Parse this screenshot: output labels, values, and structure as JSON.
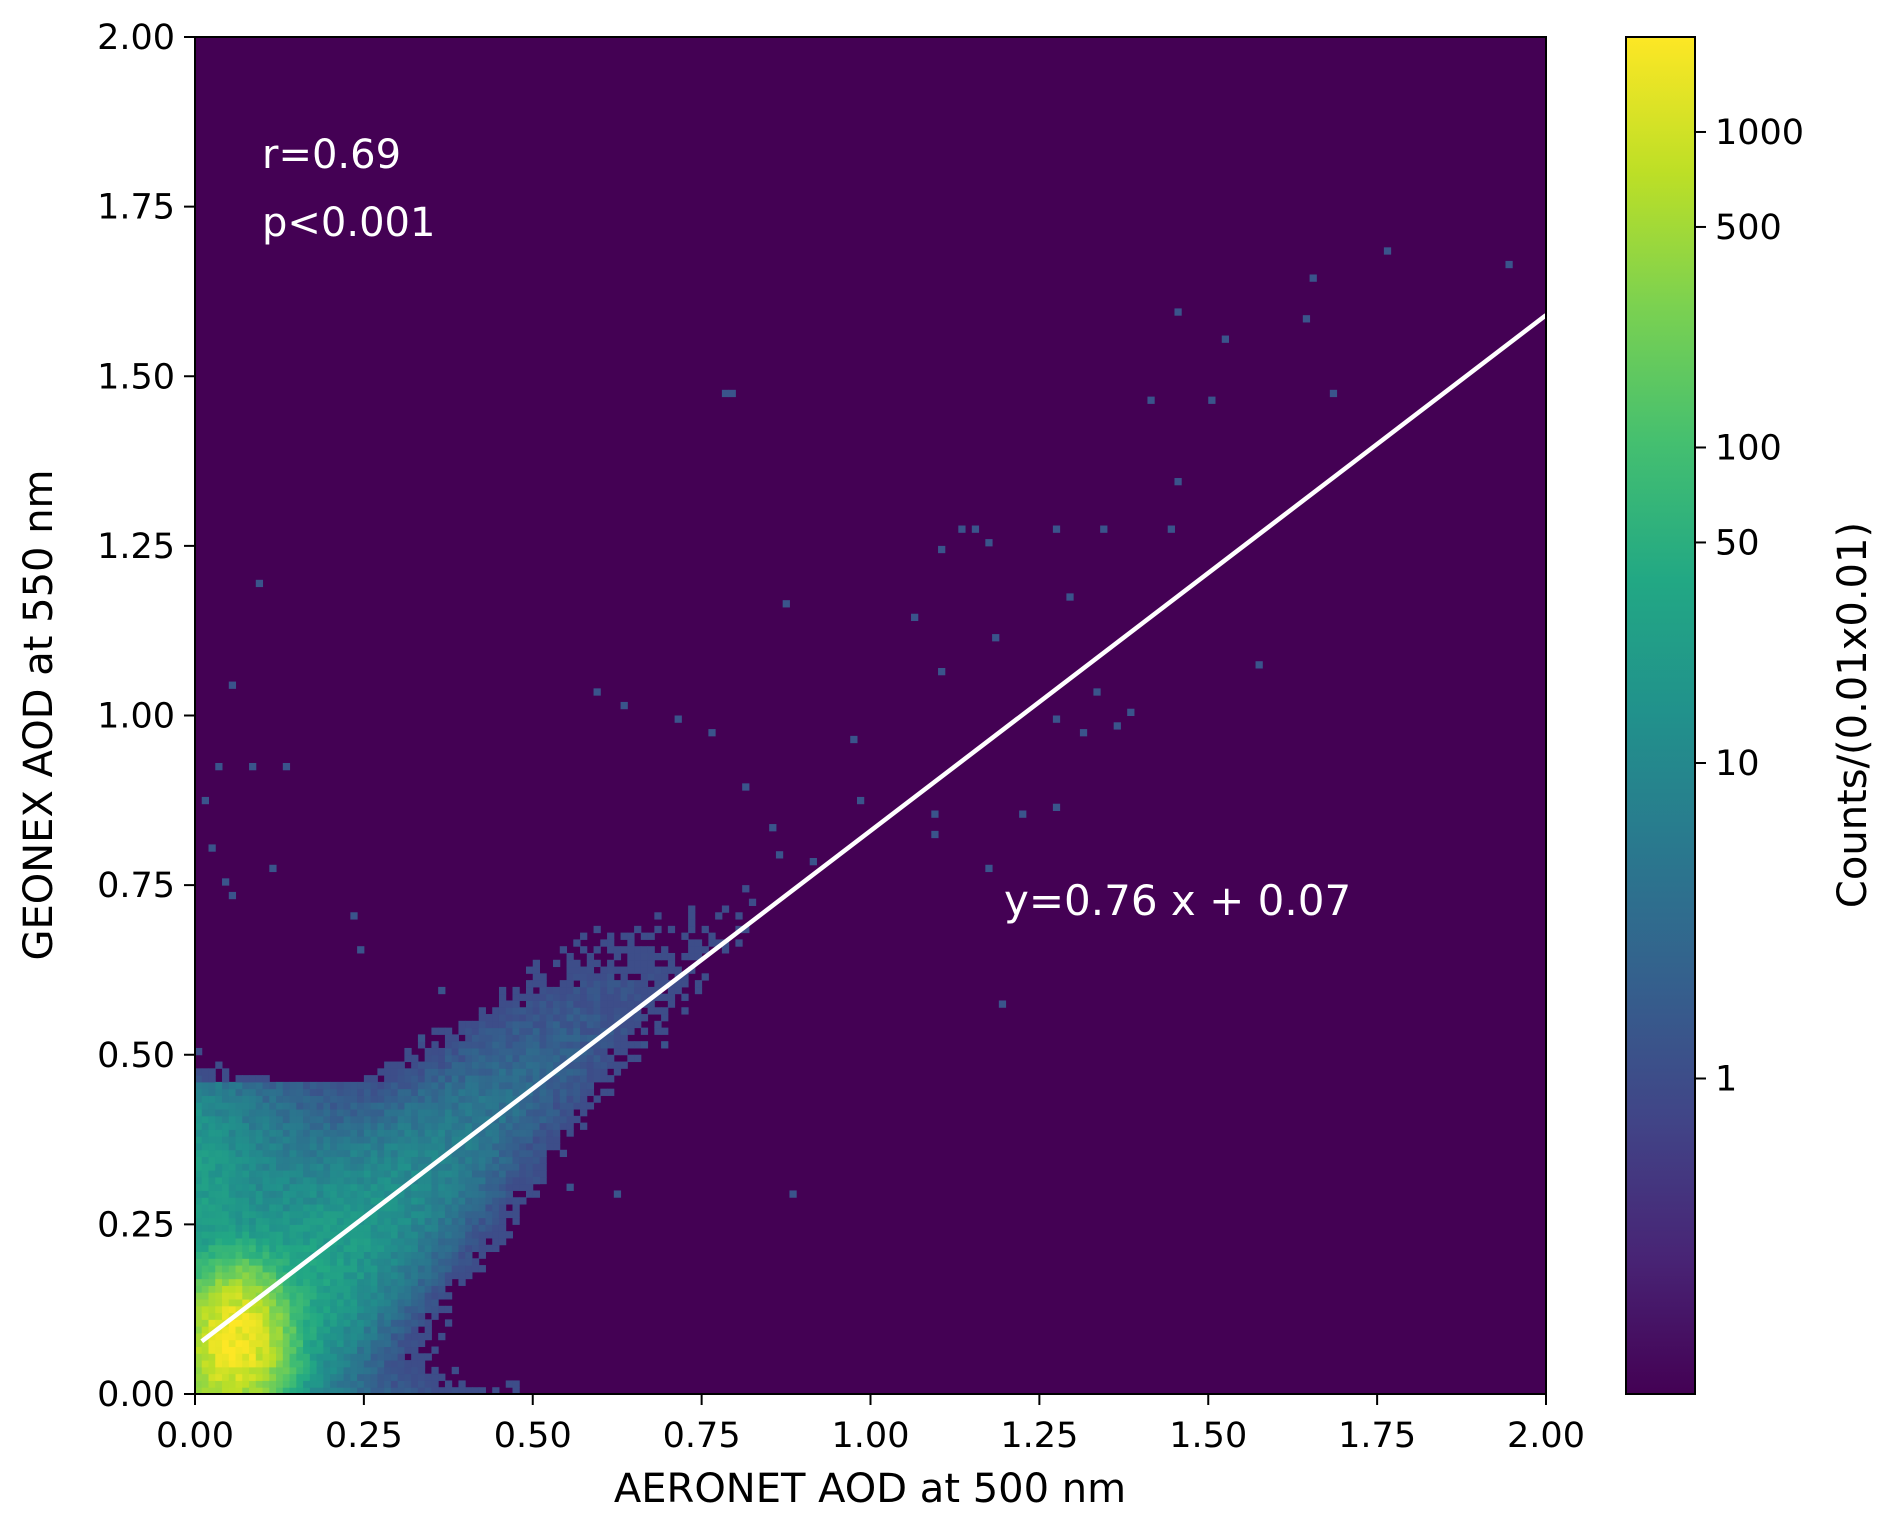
{
  "chart_data": {
    "type": "heatmap",
    "title": "",
    "xlabel": "AERONET AOD at 500 nm",
    "ylabel": "GEONEX AOD at 550 nm",
    "xlim": [
      0,
      2
    ],
    "ylim": [
      0,
      2
    ],
    "xticks": [
      "0.00",
      "0.25",
      "0.50",
      "0.75",
      "1.00",
      "1.25",
      "1.50",
      "1.75",
      "2.00"
    ],
    "yticks": [
      "0.00",
      "0.25",
      "0.50",
      "0.75",
      "1.00",
      "1.25",
      "1.50",
      "1.75",
      "2.00"
    ],
    "bin_size": 0.01,
    "colormap": "viridis",
    "background_color": "#440154",
    "colorbar": {
      "label": "Counts/(0.01x0.01)",
      "scale": "log",
      "range": [
        0.1,
        2000
      ],
      "ticks": [
        {
          "value": 1000,
          "label": "1000"
        },
        {
          "value": 500,
          "label": "500"
        },
        {
          "value": 100,
          "label": "100"
        },
        {
          "value": 50,
          "label": "50"
        },
        {
          "value": 10,
          "label": "10"
        },
        {
          "value": 1,
          "label": "1"
        }
      ]
    },
    "fit_line": {
      "slope": 0.76,
      "intercept": 0.07,
      "x_range": [
        0.01,
        2.0
      ],
      "color": "#ffffff",
      "label": "y=0.76 x + 0.07"
    },
    "annotations": {
      "r": "r=0.69",
      "p": "p<0.001"
    },
    "density_model": {
      "peak": [
        0.06,
        0.08
      ],
      "peak_count": 1800
    },
    "outliers": [
      [
        0.09,
        1.19
      ],
      [
        0.05,
        1.04
      ],
      [
        0.03,
        0.92
      ],
      [
        0.08,
        0.92
      ],
      [
        0.13,
        0.92
      ],
      [
        0.01,
        0.87
      ],
      [
        0.02,
        0.8
      ],
      [
        0.11,
        0.77
      ],
      [
        0.04,
        0.75
      ],
      [
        0.24,
        0.65
      ],
      [
        0.05,
        0.73
      ],
      [
        0.23,
        0.7
      ],
      [
        0.78,
        1.47
      ],
      [
        0.79,
        1.47
      ],
      [
        0.87,
        1.16
      ],
      [
        1.06,
        1.14
      ],
      [
        1.1,
        1.06
      ],
      [
        1.13,
        1.27
      ],
      [
        1.1,
        1.24
      ],
      [
        1.15,
        1.27
      ],
      [
        1.17,
        1.25
      ],
      [
        1.27,
        1.27
      ],
      [
        1.34,
        1.27
      ],
      [
        1.44,
        1.27
      ],
      [
        1.41,
        1.46
      ],
      [
        1.5,
        1.46
      ],
      [
        1.52,
        1.55
      ],
      [
        1.45,
        1.59
      ],
      [
        1.64,
        1.58
      ],
      [
        1.65,
        1.64
      ],
      [
        1.68,
        1.47
      ],
      [
        1.76,
        1.68
      ],
      [
        1.94,
        1.66
      ],
      [
        1.45,
        1.34
      ],
      [
        1.57,
        1.07
      ],
      [
        1.29,
        1.17
      ],
      [
        1.18,
        1.11
      ],
      [
        1.33,
        1.03
      ],
      [
        1.38,
        1.0
      ],
      [
        1.27,
        0.99
      ],
      [
        1.31,
        0.97
      ],
      [
        1.36,
        0.98
      ],
      [
        0.63,
        1.01
      ],
      [
        0.59,
        1.03
      ],
      [
        0.76,
        0.97
      ],
      [
        0.71,
        0.99
      ],
      [
        0.81,
        0.89
      ],
      [
        0.86,
        0.79
      ],
      [
        0.91,
        0.78
      ],
      [
        1.27,
        0.86
      ],
      [
        1.22,
        0.85
      ],
      [
        1.19,
        0.57
      ],
      [
        0.88,
        0.29
      ],
      [
        0.5,
        0.31
      ],
      [
        0.55,
        0.3
      ],
      [
        0.62,
        0.29
      ],
      [
        0.66,
        0.51
      ],
      [
        0.69,
        0.51
      ],
      [
        0.36,
        0.59
      ],
      [
        0.33,
        0.52
      ],
      [
        0.98,
        0.87
      ],
      [
        0.97,
        0.96
      ],
      [
        0.85,
        0.83
      ],
      [
        1.09,
        0.82
      ],
      [
        1.09,
        0.85
      ],
      [
        1.17,
        0.77
      ]
    ]
  }
}
